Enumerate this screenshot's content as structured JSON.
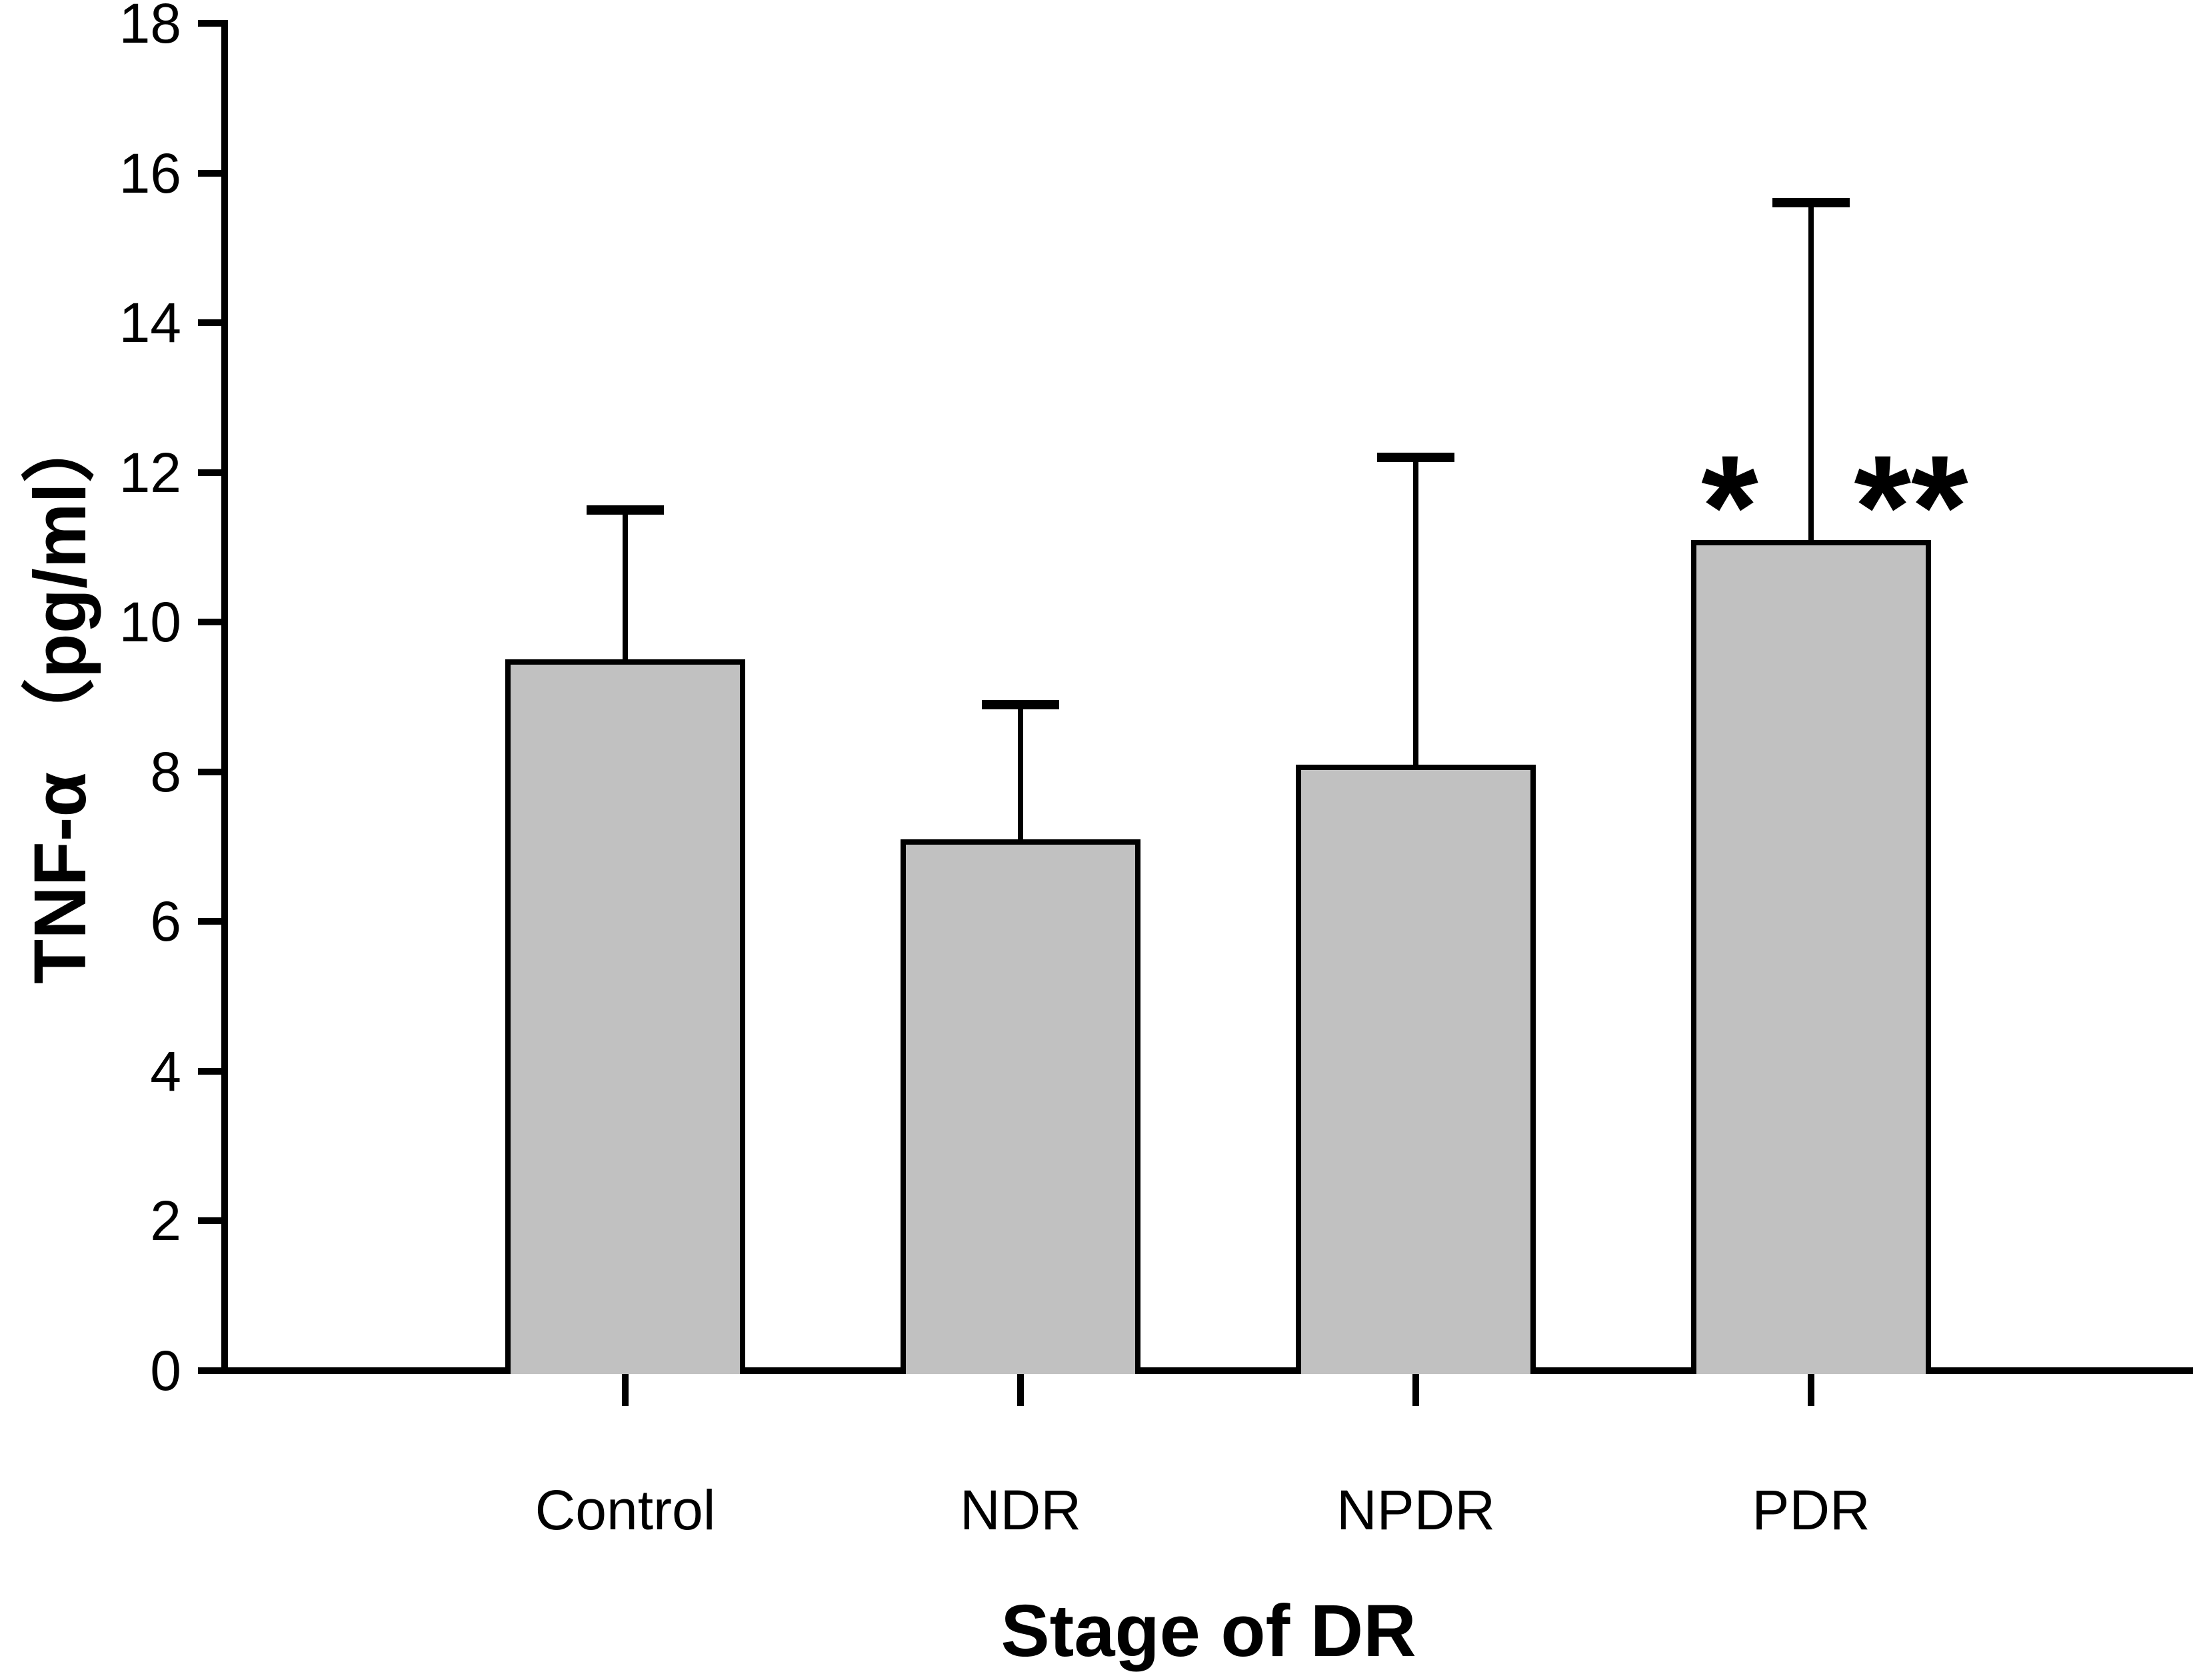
{
  "figure": {
    "background": "#ffffff",
    "line_color": "#000000",
    "bar_fill": "#c1c1c1"
  },
  "chart_data": {
    "type": "bar",
    "title": "",
    "xlabel": "Stage of DR",
    "ylabel": "TNF-α （pg/ml）",
    "categories": [
      "Control",
      "NDR",
      "NPDR",
      "PDR"
    ],
    "values": [
      9.5,
      7.1,
      8.1,
      11.1
    ],
    "error_upper": [
      2.0,
      1.8,
      4.1,
      4.5
    ],
    "ylim": [
      0,
      18
    ],
    "ytick_step": 2,
    "ytick_labels": [
      "0",
      "2",
      "4",
      "6",
      "8",
      "10",
      "12",
      "14",
      "16",
      "18"
    ],
    "grid": false,
    "legend": "none",
    "error_bar_style": "upper-only-with-cap",
    "annotations": [
      {
        "text": "*",
        "category": "PDR",
        "position": "left-of-error-bar"
      },
      {
        "text": "**",
        "category": "PDR",
        "position": "right-of-error-bar"
      }
    ]
  }
}
